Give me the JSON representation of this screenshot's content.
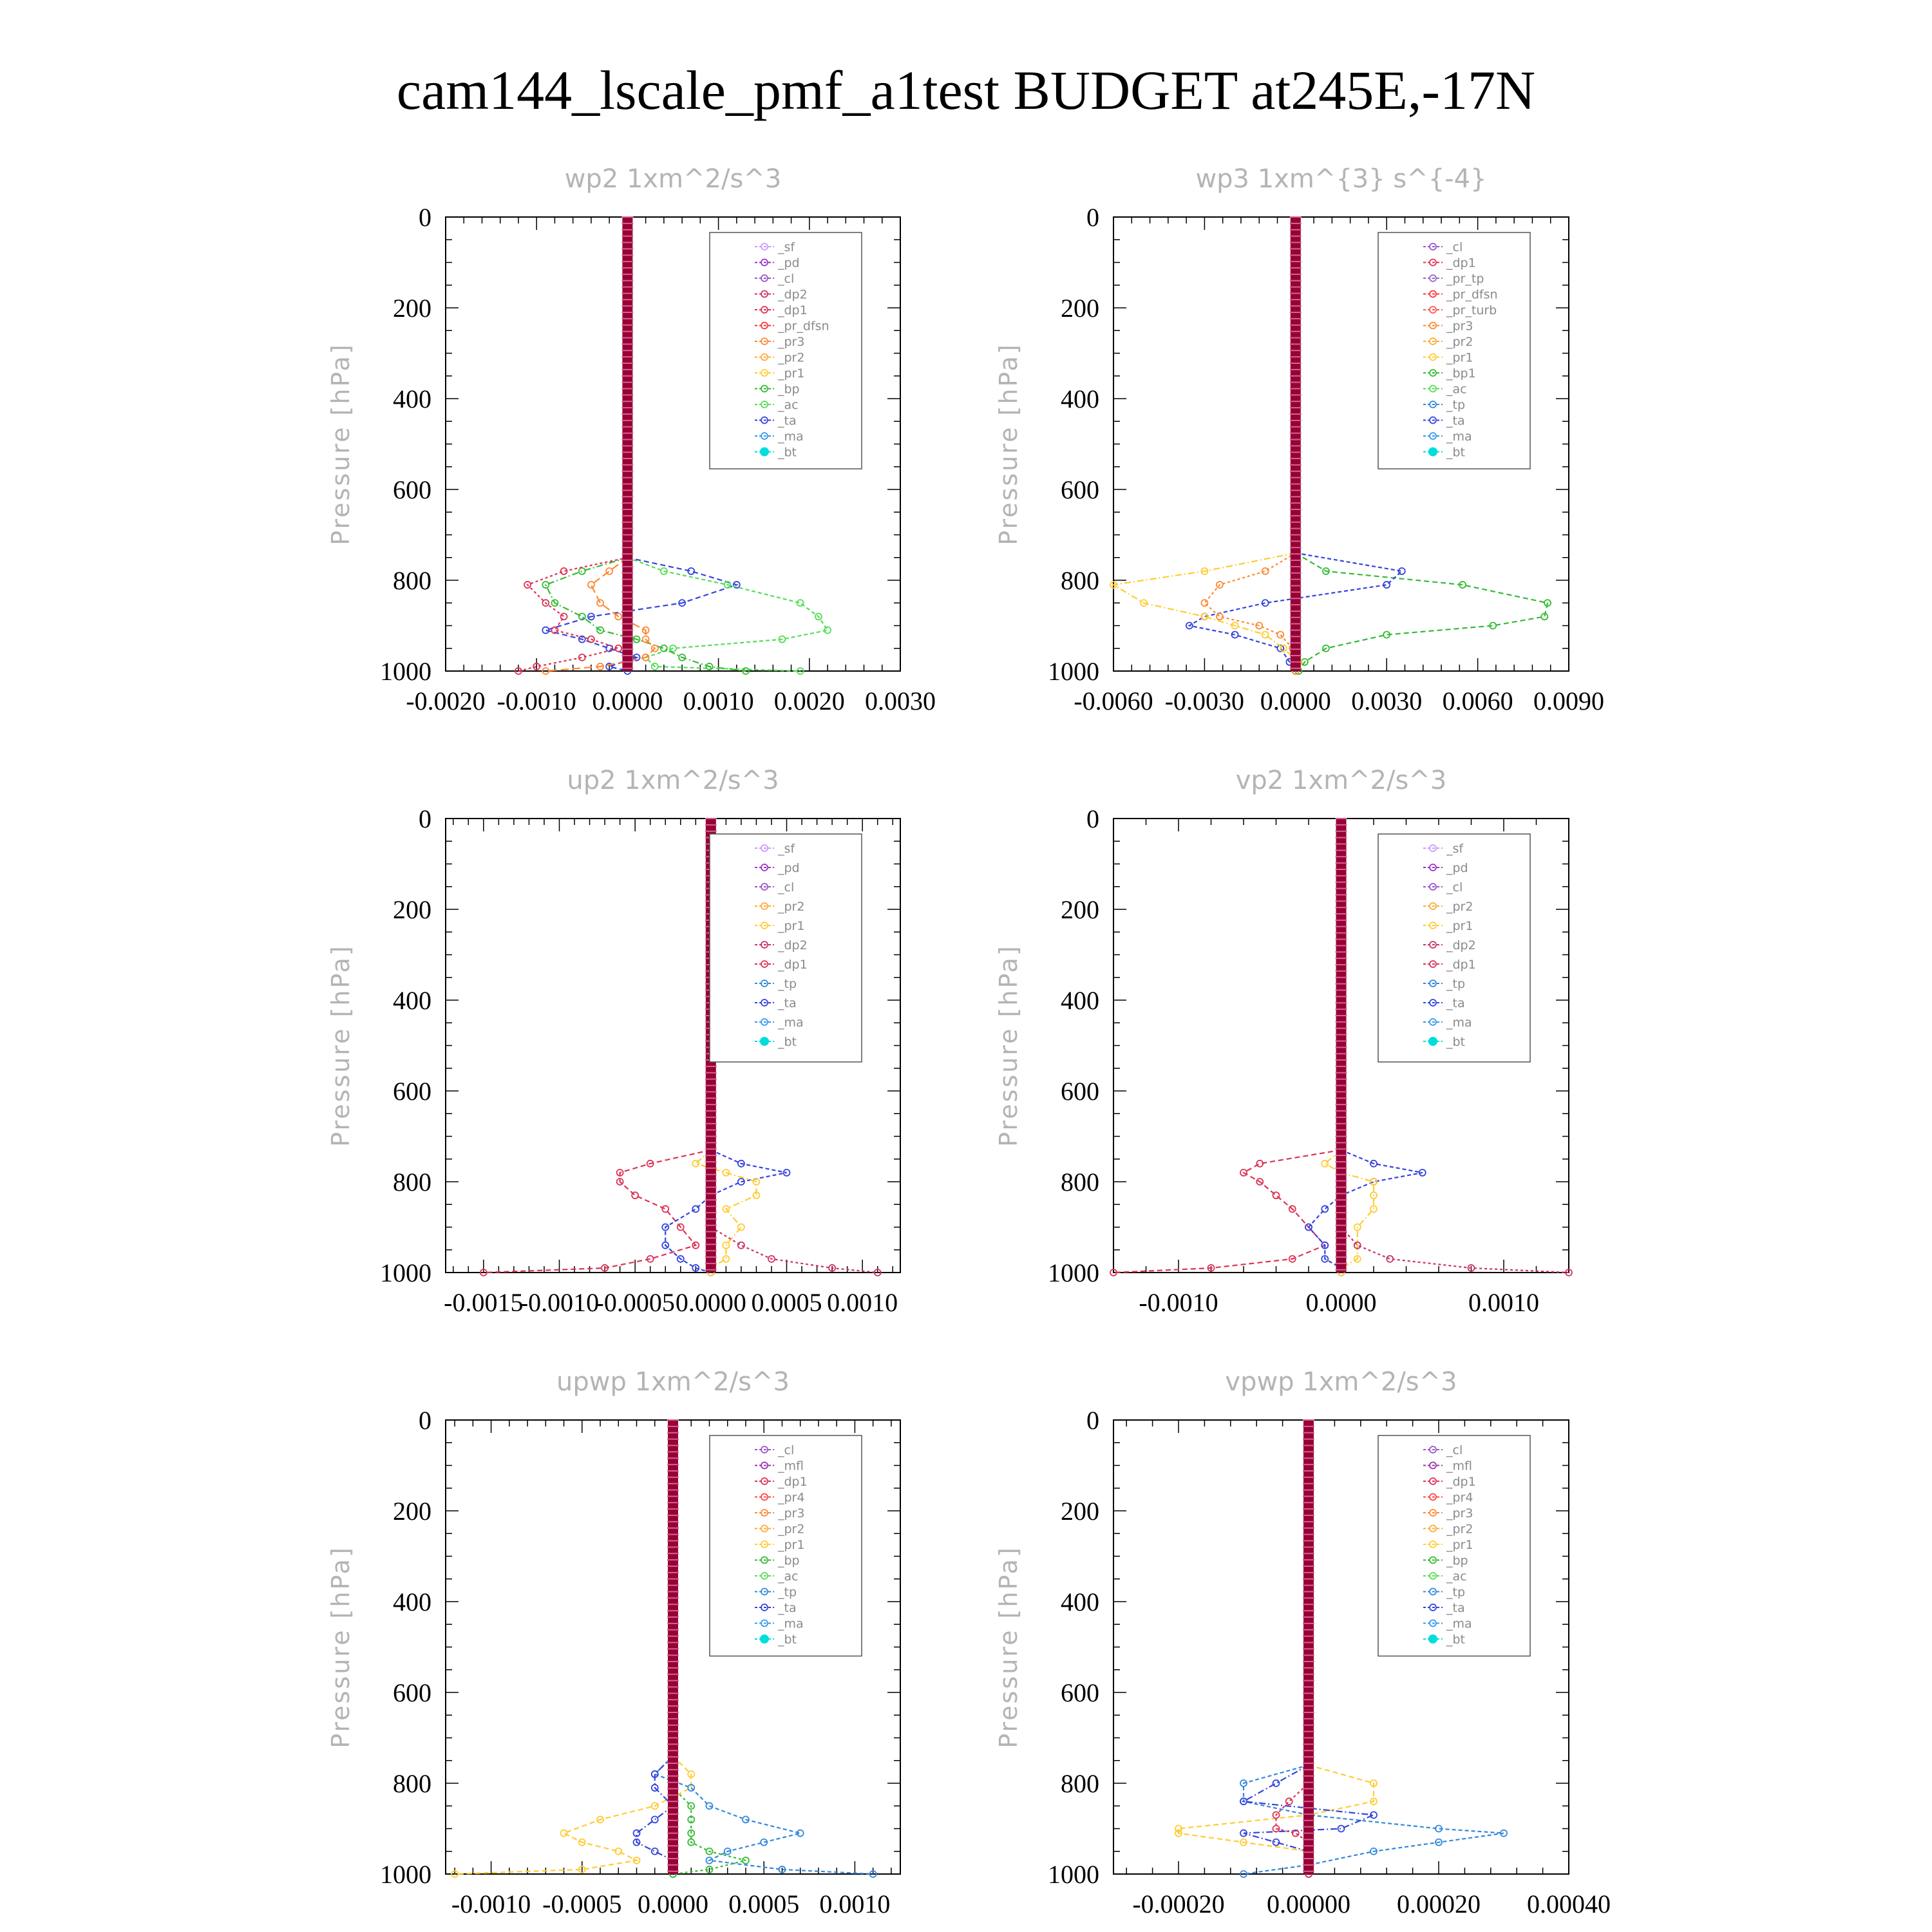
{
  "title": "cam144_lscale_pmf_a1test  BUDGET at245E,-17N",
  "colors": {
    "sf": "#cc99ff",
    "pd": "#9933cc",
    "cl": "#9955cc",
    "mfl": "#9933aa",
    "dp2": "#cc3366",
    "dp1": "#dd3355",
    "pr_dfsn": "#ff3333",
    "pr_tp": "#9966cc",
    "pr_turb": "#ff5555",
    "pr4": "#ff4444",
    "pr3": "#ff8833",
    "pr2": "#ffaa33",
    "pr1": "#ffcc33",
    "bp": "#33bb33",
    "bp1": "#33bb33",
    "ac": "#55dd55",
    "tp": "#3388dd",
    "ta": "#3344dd",
    "ma": "#3399ee",
    "bt": "#00dddd",
    "col": "#990033"
  },
  "chart_data": [
    {
      "type": "line",
      "title": "wp2  1xm^2/s^3",
      "ylabel": "Pressure [hPa]",
      "xlim": [
        -0.002,
        0.003
      ],
      "ylim": [
        0,
        1000
      ],
      "y_inverted": true,
      "x_ticks": [
        "-0.0020",
        "-0.0010",
        "0.0000",
        "0.0010",
        "0.0020",
        "0.0030"
      ],
      "y_ticks": [
        "0",
        "200",
        "400",
        "600",
        "800",
        "1000"
      ],
      "legend": [
        "_sf",
        "_pd",
        "_cl",
        "_dp2",
        "_dp1",
        "_pr_dfsn",
        "_pr3",
        "_pr2",
        "_pr1",
        "_bp",
        "_ac",
        "_ta",
        "_ma",
        "_bt"
      ],
      "pressure": [
        750,
        780,
        810,
        850,
        880,
        910,
        930,
        950,
        970,
        990,
        1000
      ],
      "series": [
        {
          "name": "_ta",
          "values": [
            0,
            0.0007,
            0.0012,
            0.0006,
            -0.0004,
            -0.0009,
            -0.0005,
            -0.0002,
            0.0001,
            -0.0002,
            0
          ]
        },
        {
          "name": "_ac",
          "values": [
            0,
            0.0004,
            0.0011,
            0.0019,
            0.0021,
            0.0022,
            0.0017,
            0.0005,
            0.0002,
            0.0003,
            0.0019
          ]
        },
        {
          "name": "_bp",
          "values": [
            0,
            -0.0005,
            -0.0009,
            -0.0008,
            -0.0005,
            -0.0003,
            0.0001,
            0.0004,
            0.0006,
            0.0009,
            0.0013
          ]
        },
        {
          "name": "_dp1",
          "values": [
            0,
            -0.0007,
            -0.0011,
            -0.0009,
            -0.0007,
            -0.0008,
            -0.0004,
            -0.0001,
            -0.0005,
            -0.001,
            -0.0012
          ]
        },
        {
          "name": "_pr3",
          "values": [
            0,
            -0.0002,
            -0.0004,
            -0.0003,
            -0.0001,
            0.0002,
            0.0002,
            0.0003,
            0.0002,
            -0.0003,
            -0.0009
          ]
        }
      ]
    },
    {
      "type": "line",
      "title": "wp3  1xm^{3} s^{-4}",
      "ylabel": "Pressure [hPa]",
      "xlim": [
        -0.006,
        0.009
      ],
      "ylim": [
        0,
        1000
      ],
      "y_inverted": true,
      "x_ticks": [
        "-0.0060",
        "-0.0030",
        "0.0000",
        "0.0030",
        "0.0060",
        "0.0090"
      ],
      "y_ticks": [
        "0",
        "200",
        "400",
        "600",
        "800",
        "1000"
      ],
      "legend": [
        "_cl",
        "_dp1",
        "_pr_tp",
        "_pr_dfsn",
        "_pr_turb",
        "_pr3",
        "_pr2",
        "_pr1",
        "_bp1",
        "_ac",
        "_tp",
        "_ta",
        "_ma",
        "_bt"
      ],
      "pressure": [
        740,
        780,
        810,
        850,
        880,
        900,
        920,
        950,
        980,
        1000
      ],
      "series": [
        {
          "name": "_bp1",
          "values": [
            0,
            0.001,
            0.0055,
            0.0083,
            0.0082,
            0.0065,
            0.003,
            0.001,
            0.0003,
            0.0001
          ]
        },
        {
          "name": "_ta",
          "values": [
            0,
            0.0035,
            0.003,
            -0.001,
            -0.003,
            -0.0035,
            -0.002,
            -0.0005,
            -0.0002,
            0
          ]
        },
        {
          "name": "_pr1",
          "values": [
            0,
            -0.003,
            -0.006,
            -0.005,
            -0.003,
            -0.002,
            -0.001,
            -0.0004,
            0.0001,
            0
          ]
        },
        {
          "name": "_pr3",
          "values": [
            0,
            -0.001,
            -0.0025,
            -0.003,
            -0.0025,
            -0.0012,
            -0.0005,
            -0.0001,
            0,
            0
          ]
        }
      ]
    },
    {
      "type": "line",
      "title": "up2  1xm^2/s^3",
      "ylabel": "Pressure [hPa]",
      "xlim": [
        -0.00175,
        0.00125
      ],
      "ylim": [
        0,
        1000
      ],
      "y_inverted": true,
      "x_ticks": [
        "-0.0015",
        "-0.0010",
        "-0.0005",
        "0.0000",
        "0.0005",
        "0.0010"
      ],
      "y_ticks": [
        "0",
        "200",
        "400",
        "600",
        "800",
        "1000"
      ],
      "legend": [
        "_sf",
        "_pd",
        "_cl",
        "_pr2",
        "_pr1",
        "_dp2",
        "_dp1",
        "_tp",
        "_ta",
        "_ma",
        "_bt"
      ],
      "pressure": [
        730,
        760,
        780,
        800,
        830,
        860,
        900,
        940,
        970,
        990,
        1000
      ],
      "series": [
        {
          "name": "_dp1",
          "values": [
            0,
            -0.0004,
            -0.0006,
            -0.0006,
            -0.0005,
            -0.0003,
            -0.0002,
            -0.0001,
            -0.0004,
            -0.0007,
            -0.0015
          ]
        },
        {
          "name": "_ta",
          "values": [
            0,
            0.0002,
            0.0005,
            0.0002,
            0,
            -0.0001,
            -0.0003,
            -0.0003,
            -0.0002,
            -0.0001,
            0
          ]
        },
        {
          "name": "_pr1",
          "values": [
            0,
            -0.0001,
            0.0001,
            0.0003,
            0.0003,
            0.0001,
            0.0002,
            0.0001,
            0.0001,
            0,
            0
          ]
        },
        {
          "name": "_dp2",
          "values": [
            0,
            0,
            0,
            0,
            0,
            0,
            0,
            0.0002,
            0.0004,
            0.0008,
            0.0011
          ]
        }
      ]
    },
    {
      "type": "line",
      "title": "vp2  1xm^2/s^3",
      "ylabel": "Pressure [hPa]",
      "xlim": [
        -0.0014,
        0.0014
      ],
      "ylim": [
        0,
        1000
      ],
      "y_inverted": true,
      "x_ticks": [
        "-0.0010",
        "0.0000",
        "0.0010"
      ],
      "y_ticks": [
        "0",
        "200",
        "400",
        "600",
        "800",
        "1000"
      ],
      "legend": [
        "_sf",
        "_pd",
        "_cl",
        "_pr2",
        "_pr1",
        "_dp2",
        "_dp1",
        "_tp",
        "_ta",
        "_ma",
        "_bt"
      ],
      "pressure": [
        730,
        760,
        780,
        800,
        830,
        860,
        900,
        940,
        970,
        990,
        1000
      ],
      "series": [
        {
          "name": "_dp1",
          "values": [
            0,
            -0.0005,
            -0.0006,
            -0.0005,
            -0.0004,
            -0.0003,
            -0.0002,
            -0.0001,
            -0.0003,
            -0.0008,
            -0.0014
          ]
        },
        {
          "name": "_ta",
          "values": [
            0,
            0.0002,
            0.0005,
            0.0002,
            0,
            -0.0001,
            -0.0002,
            -0.0001,
            -0.0001,
            0,
            0
          ]
        },
        {
          "name": "_pr1",
          "values": [
            0,
            -0.0001,
            0,
            0.0002,
            0.0002,
            0.0002,
            0.0001,
            0.0001,
            0.0001,
            0,
            0
          ]
        },
        {
          "name": "_dp2",
          "values": [
            0,
            0,
            0,
            0,
            0,
            0,
            0,
            0.0001,
            0.0003,
            0.0008,
            0.0014
          ]
        }
      ]
    },
    {
      "type": "line",
      "title": "upwp  1xm^2/s^3",
      "ylabel": "Pressure [hPa]",
      "xlim": [
        -0.00125,
        0.00125
      ],
      "ylim": [
        0,
        1000
      ],
      "y_inverted": true,
      "x_ticks": [
        "-0.0010",
        "-0.0005",
        "0.0000",
        "0.0005",
        "0.0010"
      ],
      "y_ticks": [
        "0",
        "200",
        "400",
        "600",
        "800",
        "1000"
      ],
      "legend": [
        "_cl",
        "_mfl",
        "_dp1",
        "_pr4",
        "_pr3",
        "_pr2",
        "_pr1",
        "_bp",
        "_ac",
        "_tp",
        "_ta",
        "_ma",
        "_bt"
      ],
      "pressure": [
        740,
        780,
        810,
        850,
        880,
        910,
        930,
        950,
        970,
        990,
        1000
      ],
      "series": [
        {
          "name": "_pr1",
          "values": [
            0,
            0.0001,
            0.0001,
            -0.0001,
            -0.0004,
            -0.0006,
            -0.0005,
            -0.0003,
            -0.0002,
            -0.0005,
            -0.0012
          ]
        },
        {
          "name": "_tp",
          "values": [
            0,
            -0.0001,
            0.0001,
            0.0002,
            0.0004,
            0.0007,
            0.0005,
            0.0003,
            0.0002,
            0.0006,
            0.0011
          ]
        },
        {
          "name": "_ta",
          "values": [
            0,
            -0.0001,
            -0.0001,
            0,
            -0.0001,
            -0.0002,
            -0.0002,
            -0.0001,
            0,
            0,
            0
          ]
        },
        {
          "name": "_bp",
          "values": [
            0,
            0,
            0,
            0.0001,
            0.0001,
            0.0001,
            0.0001,
            0.0002,
            0.0004,
            0.0002,
            0
          ]
        }
      ]
    },
    {
      "type": "line",
      "title": "vpwp  1xm^2/s^3",
      "ylabel": "Pressure [hPa]",
      "xlim": [
        -0.0003,
        0.0004
      ],
      "ylim": [
        0,
        1000
      ],
      "y_inverted": true,
      "x_ticks": [
        "-0.00020",
        "0.00000",
        "0.00020",
        "0.00040"
      ],
      "y_ticks": [
        "0",
        "200",
        "400",
        "600",
        "800",
        "1000"
      ],
      "legend": [
        "_cl",
        "_mfl",
        "_dp1",
        "_pr4",
        "_pr3",
        "_pr2",
        "_pr1",
        "_bp",
        "_ac",
        "_tp",
        "_ta",
        "_ma",
        "_bt"
      ],
      "pressure": [
        760,
        800,
        840,
        870,
        900,
        910,
        930,
        950,
        980,
        1000
      ],
      "series": [
        {
          "name": "_pr1",
          "values": [
            0,
            0.0001,
            0.0001,
            0,
            -0.0002,
            -0.0002,
            -0.0001,
            0,
            0,
            0
          ]
        },
        {
          "name": "_tp",
          "values": [
            0,
            -0.0001,
            -0.0001,
            0,
            0.0002,
            0.0003,
            0.0002,
            0.0001,
            0,
            -0.0001
          ]
        },
        {
          "name": "_ta",
          "values": [
            0,
            -5e-05,
            -0.0001,
            0.0001,
            5e-05,
            -0.0001,
            -5e-05,
            0,
            0,
            0
          ]
        },
        {
          "name": "_dp1",
          "values": [
            0,
            0,
            -3e-05,
            -5e-05,
            -5e-05,
            -2e-05,
            0,
            0,
            0,
            0
          ]
        }
      ]
    }
  ]
}
